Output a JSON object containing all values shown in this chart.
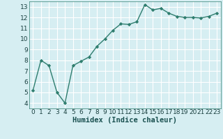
{
  "x": [
    0,
    1,
    2,
    3,
    4,
    5,
    6,
    7,
    8,
    9,
    10,
    11,
    12,
    13,
    14,
    15,
    16,
    17,
    18,
    19,
    20,
    21,
    22,
    23
  ],
  "y": [
    5.2,
    8.0,
    7.5,
    5.0,
    4.0,
    7.5,
    7.9,
    8.3,
    9.3,
    10.0,
    10.8,
    11.4,
    11.35,
    11.6,
    13.2,
    12.7,
    12.85,
    12.4,
    12.1,
    12.0,
    12.0,
    11.95,
    12.1,
    12.4
  ],
  "line_color": "#2e7d6e",
  "marker": "D",
  "marker_size": 2.2,
  "bg_color": "#d6eef2",
  "grid_color": "#b8d8dc",
  "xlabel": "Humidex (Indice chaleur)",
  "xlim": [
    -0.5,
    23.5
  ],
  "ylim": [
    3.5,
    13.5
  ],
  "yticks": [
    4,
    5,
    6,
    7,
    8,
    9,
    10,
    11,
    12,
    13
  ],
  "xticks": [
    0,
    1,
    2,
    3,
    4,
    5,
    6,
    7,
    8,
    9,
    10,
    11,
    12,
    13,
    14,
    15,
    16,
    17,
    18,
    19,
    20,
    21,
    22,
    23
  ],
  "tick_fontsize": 6.5,
  "xlabel_fontsize": 7.5,
  "line_width": 1.0
}
